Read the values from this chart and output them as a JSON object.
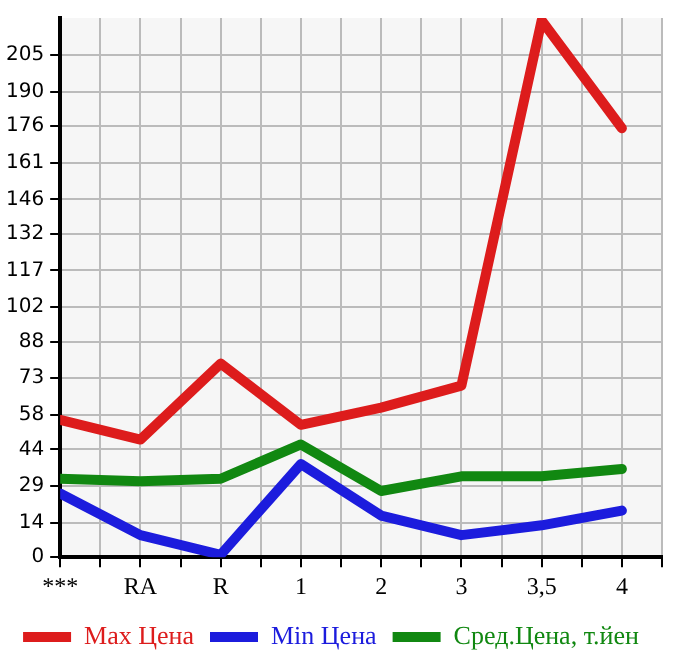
{
  "chart_data": {
    "type": "line",
    "categories": [
      "***",
      "RA",
      "R",
      "1",
      "2",
      "3",
      "3,5",
      "4"
    ],
    "series": [
      {
        "name": "Max Цена",
        "color": "#dd1c1c",
        "values": [
          56,
          48,
          79,
          54,
          61,
          70,
          219,
          175
        ]
      },
      {
        "name": "Min Цена",
        "color": "#1c1cdd",
        "values": [
          26,
          9,
          1,
          38,
          17,
          9,
          13,
          19
        ]
      },
      {
        "name": "Сред.Цена, т.йен",
        "color": "#118811",
        "values": [
          32,
          31,
          32,
          46,
          27,
          33,
          33,
          36
        ]
      }
    ],
    "ylim": [
      0,
      220
    ],
    "yticks": [
      0,
      14,
      29,
      44,
      58,
      73,
      88,
      102,
      117,
      132,
      146,
      161,
      176,
      190,
      205
    ],
    "grid": true,
    "legend": "bottom",
    "marker": "none",
    "line_style": "solid"
  }
}
